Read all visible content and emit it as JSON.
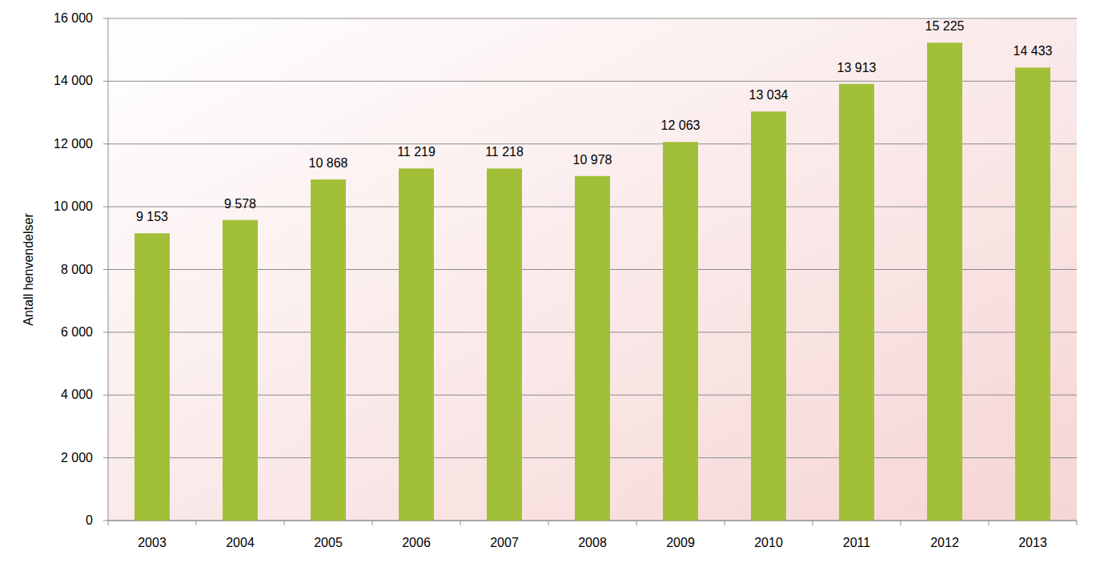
{
  "chart_data": {
    "type": "bar",
    "y_label": "Antall henvendelser",
    "categories": [
      "2003",
      "2004",
      "2005",
      "2006",
      "2007",
      "2008",
      "2009",
      "2010",
      "2011",
      "2012",
      "2013"
    ],
    "values": [
      9153,
      9578,
      10868,
      11219,
      11218,
      10978,
      12063,
      13034,
      13913,
      15225,
      14433
    ],
    "value_labels": [
      "9 153",
      "9 578",
      "10 868",
      "11 219",
      "11 218",
      "10 978",
      "12 063",
      "13 034",
      "13 913",
      "15 225",
      "14 433"
    ],
    "color": "#a2c037",
    "ylim": [
      0,
      16000
    ],
    "yticks": [
      0,
      {
        "value": 2000,
        "label": "2 000"
      },
      {
        "value": 4000,
        "label": "4 000"
      },
      {
        "value": 6000,
        "label": "6 000"
      },
      {
        "value": 8000,
        "label": "8 000"
      },
      {
        "value": 10000,
        "label": "10 000"
      },
      {
        "value": 12000,
        "label": "12 000"
      },
      {
        "value": 14000,
        "label": "14 000"
      },
      {
        "value": 16000,
        "label": "16 000"
      }
    ],
    "grid": true,
    "data_labels": true
  }
}
